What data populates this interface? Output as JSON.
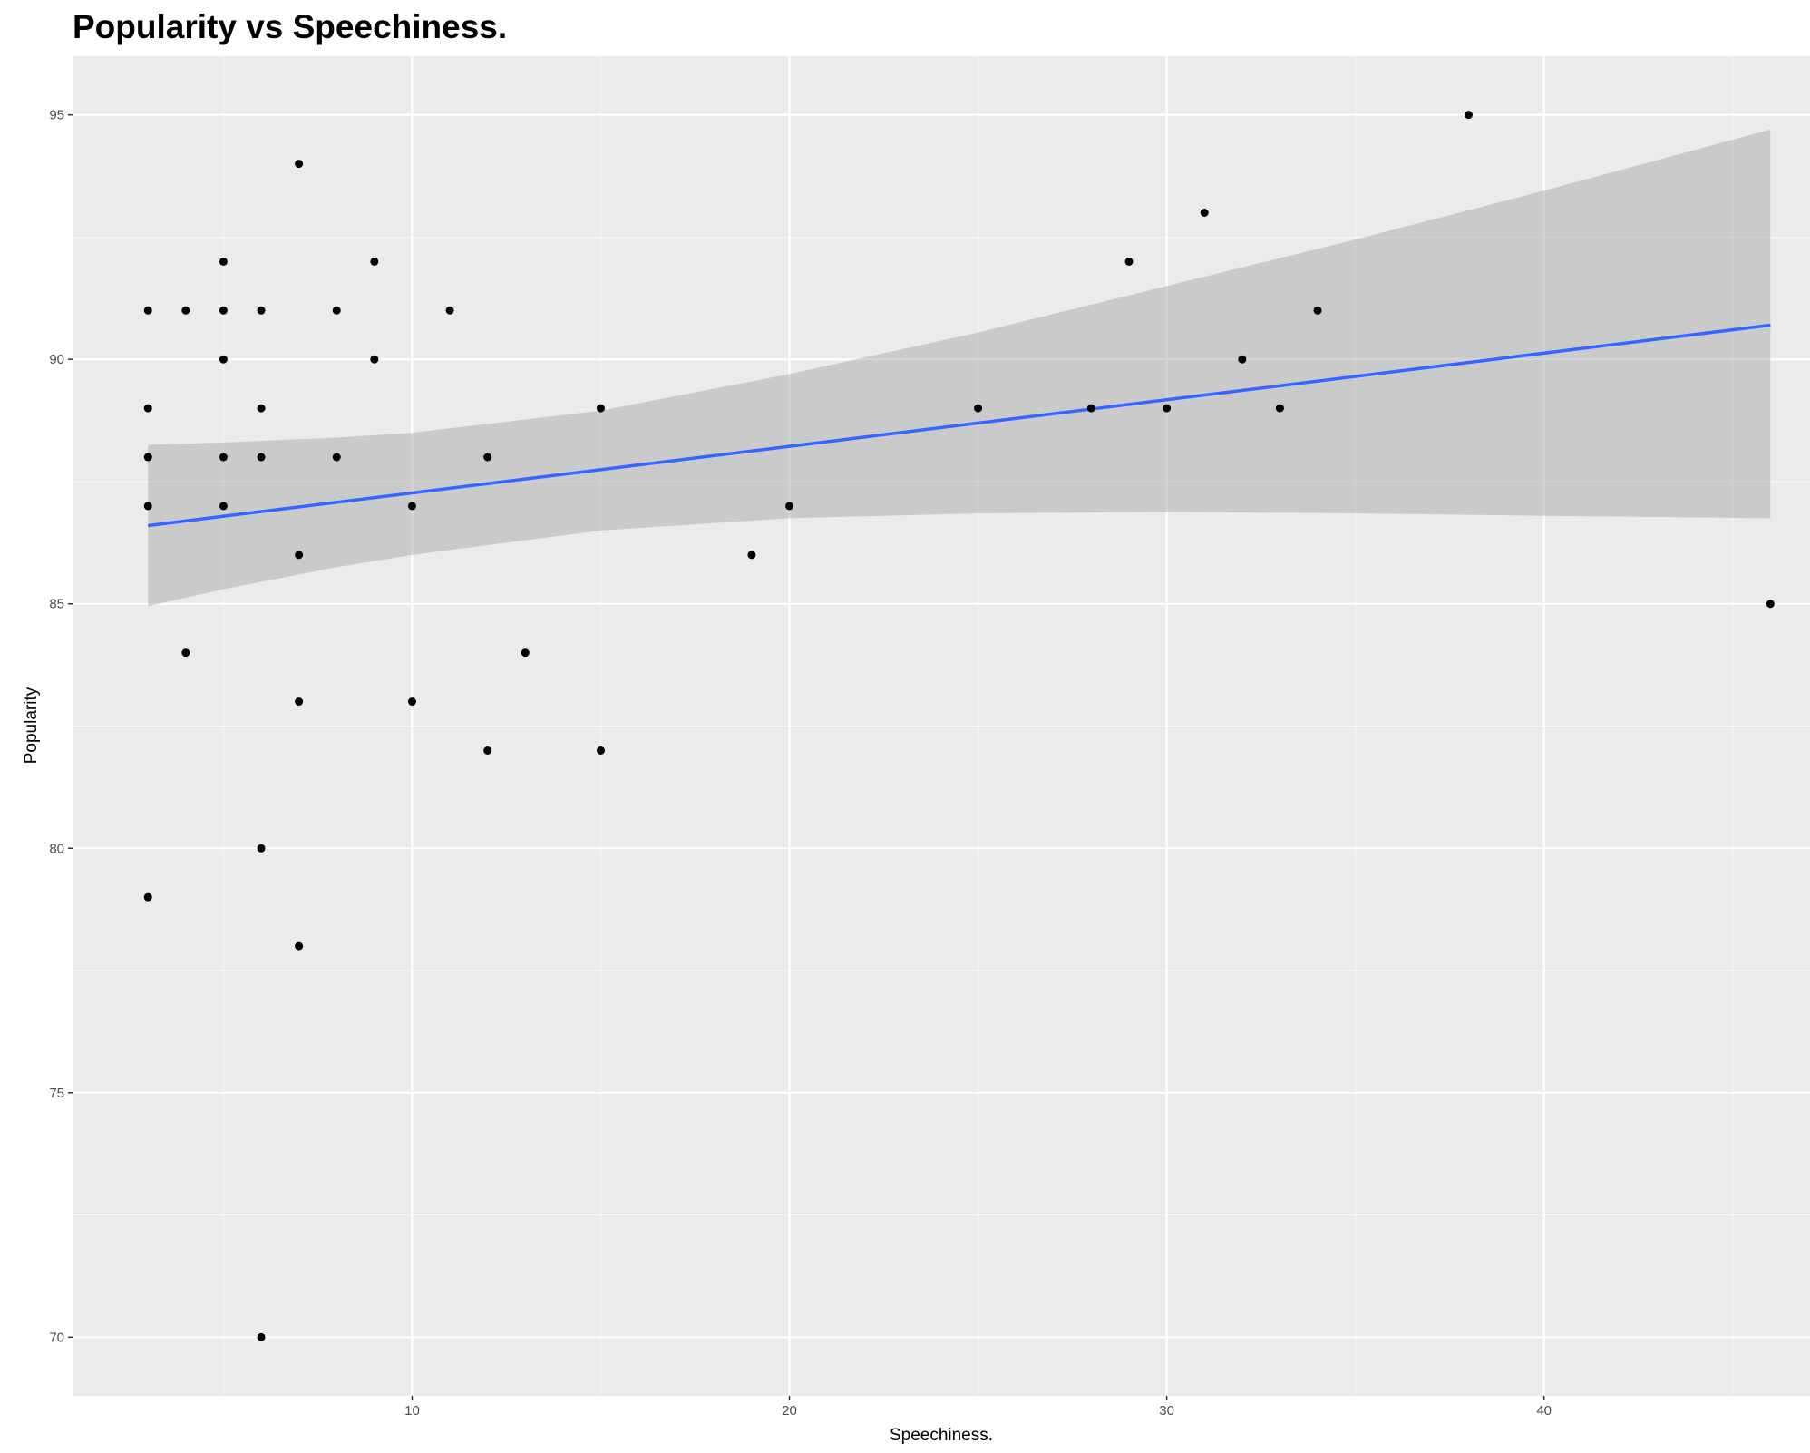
{
  "chart_data": {
    "type": "scatter",
    "title": "Popularity vs Speechiness.",
    "xlabel": "Speechiness.",
    "ylabel": "Popularity",
    "xlim": [
      1,
      47.05
    ],
    "ylim": [
      68.8,
      96.2
    ],
    "x_ticks": [
      10,
      20,
      30,
      40
    ],
    "x_tick_labels": [
      "10",
      "20",
      "30",
      "40"
    ],
    "y_ticks": [
      70,
      75,
      80,
      85,
      90,
      95
    ],
    "y_tick_labels": [
      "70",
      "75",
      "80",
      "85",
      "90",
      "95"
    ],
    "grid": true,
    "points": [
      {
        "x": 3,
        "y": 91
      },
      {
        "x": 3,
        "y": 89
      },
      {
        "x": 3,
        "y": 88
      },
      {
        "x": 3,
        "y": 87
      },
      {
        "x": 3,
        "y": 79
      },
      {
        "x": 4,
        "y": 91
      },
      {
        "x": 4,
        "y": 84
      },
      {
        "x": 5,
        "y": 92
      },
      {
        "x": 5,
        "y": 91
      },
      {
        "x": 5,
        "y": 90
      },
      {
        "x": 5,
        "y": 88
      },
      {
        "x": 5,
        "y": 87
      },
      {
        "x": 6,
        "y": 91
      },
      {
        "x": 6,
        "y": 89
      },
      {
        "x": 6,
        "y": 88
      },
      {
        "x": 6,
        "y": 80
      },
      {
        "x": 6,
        "y": 70
      },
      {
        "x": 7,
        "y": 94
      },
      {
        "x": 7,
        "y": 86
      },
      {
        "x": 7,
        "y": 83
      },
      {
        "x": 7,
        "y": 78
      },
      {
        "x": 8,
        "y": 91
      },
      {
        "x": 8,
        "y": 88
      },
      {
        "x": 9,
        "y": 92
      },
      {
        "x": 9,
        "y": 90
      },
      {
        "x": 10,
        "y": 87
      },
      {
        "x": 10,
        "y": 83
      },
      {
        "x": 11,
        "y": 91
      },
      {
        "x": 12,
        "y": 88
      },
      {
        "x": 12,
        "y": 82
      },
      {
        "x": 13,
        "y": 84
      },
      {
        "x": 15,
        "y": 89
      },
      {
        "x": 15,
        "y": 82
      },
      {
        "x": 19,
        "y": 86
      },
      {
        "x": 20,
        "y": 87
      },
      {
        "x": 25,
        "y": 89
      },
      {
        "x": 28,
        "y": 89
      },
      {
        "x": 29,
        "y": 92
      },
      {
        "x": 30,
        "y": 89
      },
      {
        "x": 31,
        "y": 93
      },
      {
        "x": 32,
        "y": 90
      },
      {
        "x": 33,
        "y": 89
      },
      {
        "x": 34,
        "y": 91
      },
      {
        "x": 38,
        "y": 95
      },
      {
        "x": 46,
        "y": 85
      }
    ],
    "trend_line": {
      "method": "linear",
      "x": [
        3,
        46
      ],
      "y": [
        86.6,
        90.7
      ],
      "color": "#3366ff"
    },
    "confidence_band": {
      "color": "#bfbfbf",
      "x": [
        3,
        5,
        8,
        10,
        15,
        20,
        25,
        30,
        35,
        40,
        46
      ],
      "lower": [
        84.95,
        85.3,
        85.75,
        86.0,
        86.5,
        86.75,
        86.85,
        86.88,
        86.85,
        86.8,
        86.75
      ],
      "upper": [
        88.25,
        88.3,
        88.4,
        88.5,
        88.95,
        89.7,
        90.55,
        91.5,
        92.45,
        93.45,
        94.7
      ]
    },
    "colors": {
      "panel": "#ebebeb",
      "grid_major": "#ffffff",
      "points": "#000000"
    }
  }
}
